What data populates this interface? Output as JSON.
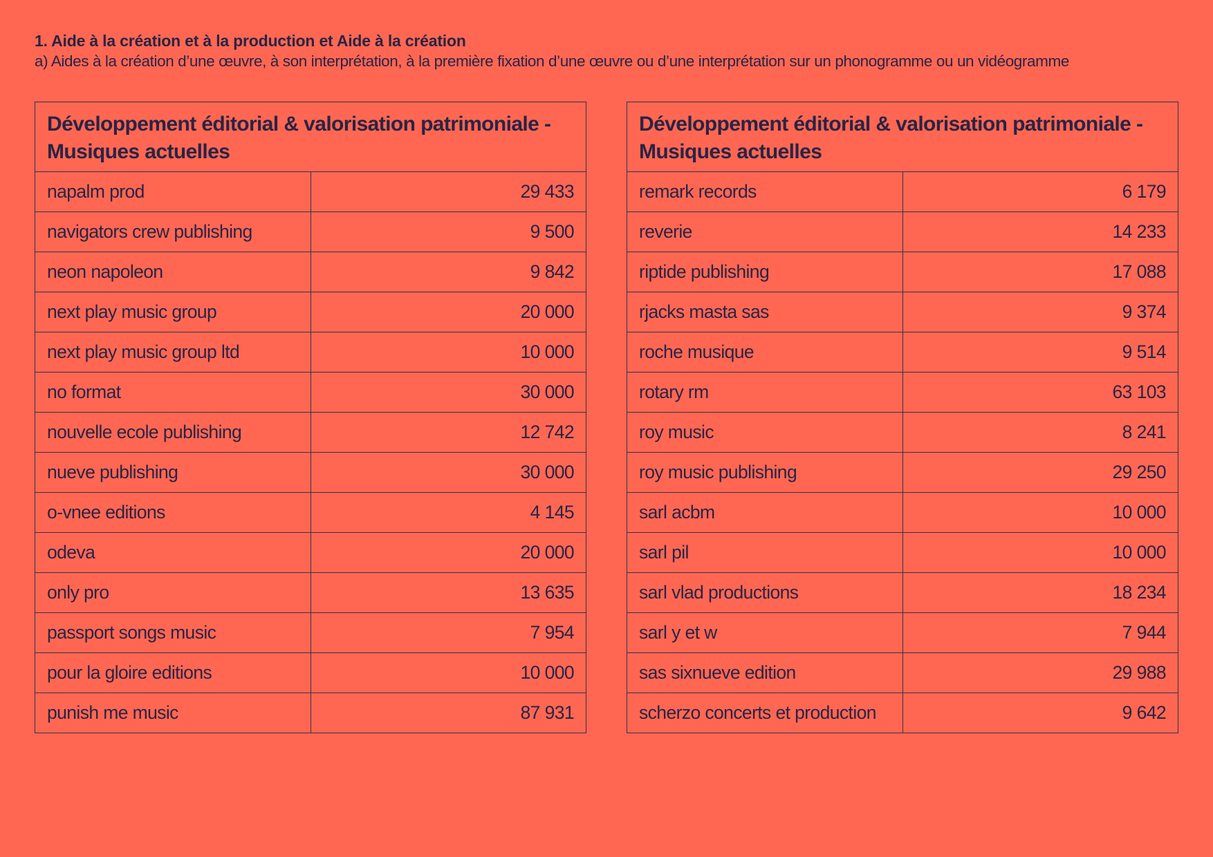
{
  "header": {
    "title": "1. Aide à la création et à la production et Aide à la création",
    "subtitle": "a) Aides à la création d’une œuvre, à son interprétation, à la première fixation d’une œuvre ou d’une interprétation sur un phonogramme ou un vidéogramme"
  },
  "tables": [
    {
      "title": "Développement éditorial & valorisation patrimoniale - Musiques actuelles",
      "rows": [
        {
          "name": "napalm prod",
          "amount": "29 433"
        },
        {
          "name": "navigators crew publishing",
          "amount": "9 500"
        },
        {
          "name": "neon napoleon",
          "amount": "9 842"
        },
        {
          "name": "next play music group",
          "amount": "20 000"
        },
        {
          "name": "next play music group ltd",
          "amount": "10 000"
        },
        {
          "name": "no format",
          "amount": "30 000"
        },
        {
          "name": "nouvelle ecole publishing",
          "amount": "12 742"
        },
        {
          "name": "nueve publishing",
          "amount": "30 000"
        },
        {
          "name": "o-vnee editions",
          "amount": "4 145"
        },
        {
          "name": "odeva",
          "amount": "20 000"
        },
        {
          "name": "only pro",
          "amount": "13 635"
        },
        {
          "name": "passport songs music",
          "amount": "7 954"
        },
        {
          "name": "pour la gloire editions",
          "amount": "10 000"
        },
        {
          "name": "punish me music",
          "amount": "87 931"
        }
      ]
    },
    {
      "title": "Développement éditorial & valorisation patrimoniale - Musiques actuelles",
      "rows": [
        {
          "name": "remark records",
          "amount": "6 179"
        },
        {
          "name": "reverie",
          "amount": "14 233"
        },
        {
          "name": "riptide publishing",
          "amount": "17 088"
        },
        {
          "name": "rjacks masta sas",
          "amount": "9 374"
        },
        {
          "name": "roche musique",
          "amount": "9 514"
        },
        {
          "name": "rotary rm",
          "amount": "63 103"
        },
        {
          "name": "roy music",
          "amount": "8 241"
        },
        {
          "name": "roy music publishing",
          "amount": "29 250"
        },
        {
          "name": "sarl acbm",
          "amount": "10 000"
        },
        {
          "name": "sarl pil",
          "amount": "10 000"
        },
        {
          "name": "sarl vlad productions",
          "amount": "18 234"
        },
        {
          "name": "sarl y et w",
          "amount": "7 944"
        },
        {
          "name": "sas sixnueve edition",
          "amount": "29 988"
        },
        {
          "name": "scherzo concerts et production",
          "amount": "9 642"
        }
      ]
    }
  ]
}
